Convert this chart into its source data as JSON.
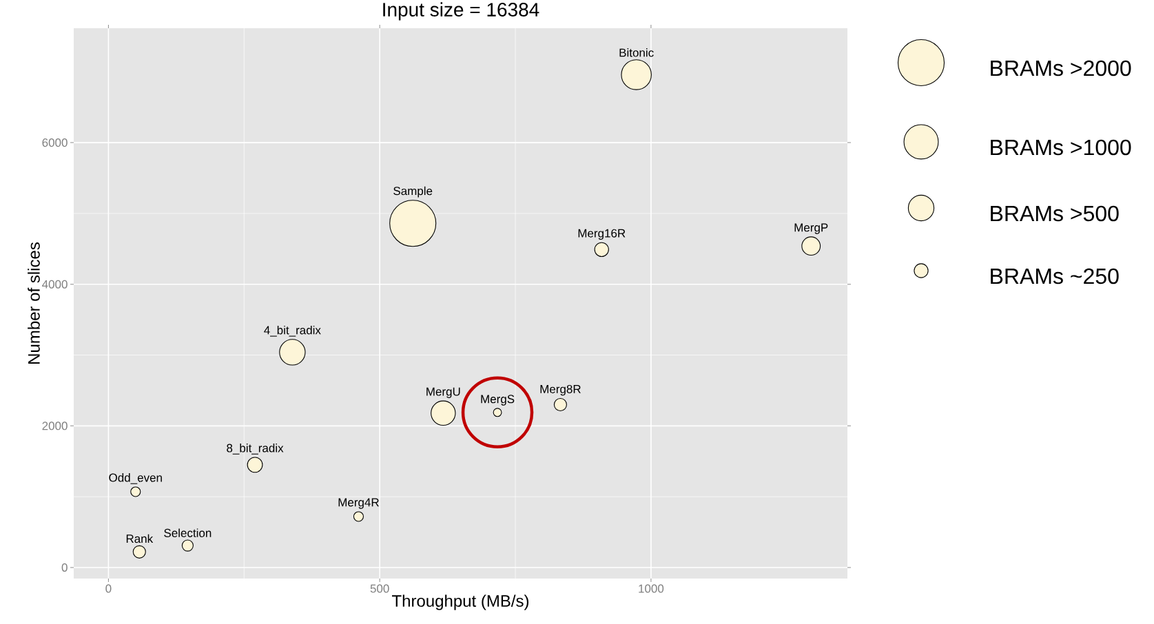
{
  "chart_data": {
    "type": "bubble",
    "title": "Input size = 16384",
    "xlabel": "Throughput (MB/s)",
    "ylabel": "Number of slices",
    "series": [
      {
        "type": "bubble",
        "color": "#fdf5d8",
        "x": [
          973,
          561,
          909,
          1295,
          339,
          617,
          717,
          833,
          270,
          50,
          461,
          57,
          146
        ],
        "values": [
          6960,
          4860,
          4490,
          4540,
          3040,
          2180,
          2190,
          2300,
          1450,
          1070,
          720,
          220,
          310
        ],
        "sizes": [
          0.44,
          1,
          0.11,
          0.18,
          0.33,
          0.3,
          0.045,
          0.09,
          0.125,
          0.059,
          0.059,
          0.09,
          0.074
        ]
      },
      {
        "type": "scatter",
        "color": "#c00000",
        "marker": "circle",
        "x": [
          717
        ],
        "values": [
          2190
        ]
      }
    ],
    "size_legend": [
      {
        "value": 1,
        "label": "BRAMs >2000"
      },
      {
        "value": 0.57,
        "label": "BRAMs >1000"
      },
      {
        "value": 0.33,
        "label": "BRAMs >500"
      },
      {
        "value": 0.11,
        "label": "BRAMs ~250"
      }
    ],
    "annotations": [
      {
        "text": "Bitonic",
        "x": 973,
        "y": 6960
      },
      {
        "text": "Sample",
        "x": 561,
        "y": 4860
      },
      {
        "text": "Merg16R",
        "x": 909,
        "y": 4490
      },
      {
        "text": "MergP",
        "x": 1295,
        "y": 4540
      },
      {
        "text": "4_bit_radix",
        "x": 339,
        "y": 3040
      },
      {
        "text": "MergU",
        "x": 617,
        "y": 2180
      },
      {
        "text": "MergS",
        "x": 717,
        "y": 2190
      },
      {
        "text": "Merg8R",
        "x": 833,
        "y": 2300
      },
      {
        "text": "8_bit_radix",
        "x": 270,
        "y": 1450
      },
      {
        "text": "Odd_even",
        "x": 50,
        "y": 1070
      },
      {
        "text": "Merg4R",
        "x": 461,
        "y": 720
      },
      {
        "text": "Rank",
        "x": 57,
        "y": 220
      },
      {
        "text": "Selection",
        "x": 146,
        "y": 310
      }
    ],
    "xlim": [
      -64,
      1362
    ],
    "ylim": [
      -156,
      7616
    ],
    "xticks": [
      0,
      500,
      1000
    ],
    "yticks": [
      0,
      2000,
      4000,
      6000
    ],
    "grid": true
  }
}
